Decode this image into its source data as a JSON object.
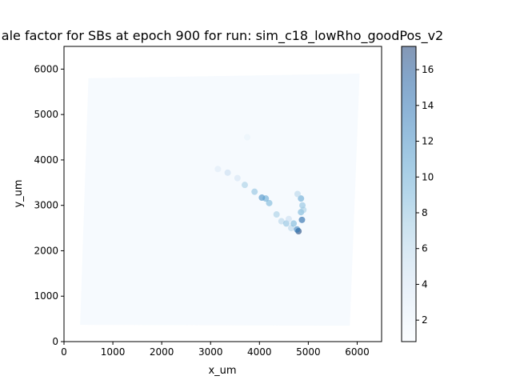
{
  "chart_data": {
    "type": "heatmap",
    "title": "ale factor for SBs at epoch 900 for run: sim_c18_lowRho_goodPos_v2",
    "xlabel": "x_um",
    "ylabel": "y_um",
    "xlim": [
      0,
      6500
    ],
    "ylim": [
      0,
      6500
    ],
    "x_ticks": [
      0,
      1000,
      2000,
      3000,
      4000,
      5000,
      6000
    ],
    "y_ticks": [
      0,
      1000,
      2000,
      3000,
      4000,
      5000,
      6000
    ],
    "grid": false,
    "colormap": "Blues",
    "colorbar": {
      "range": [
        0.8,
        17.3
      ],
      "ticks": [
        2,
        4,
        6,
        8,
        10,
        12,
        14,
        16
      ]
    },
    "background_region": {
      "value": 1,
      "corners": [
        [
          500,
          5800
        ],
        [
          6050,
          5900
        ],
        [
          5850,
          350
        ],
        [
          330,
          370
        ]
      ]
    },
    "points": [
      {
        "x": 3350,
        "y": 3720,
        "value": 5
      },
      {
        "x": 3550,
        "y": 3600,
        "value": 4
      },
      {
        "x": 3700,
        "y": 3450,
        "value": 7
      },
      {
        "x": 3900,
        "y": 3300,
        "value": 8
      },
      {
        "x": 4050,
        "y": 3170,
        "value": 12
      },
      {
        "x": 4130,
        "y": 3150,
        "value": 10
      },
      {
        "x": 4200,
        "y": 3050,
        "value": 9
      },
      {
        "x": 4350,
        "y": 2800,
        "value": 7
      },
      {
        "x": 4450,
        "y": 2650,
        "value": 6
      },
      {
        "x": 4550,
        "y": 2600,
        "value": 8
      },
      {
        "x": 4650,
        "y": 2500,
        "value": 6
      },
      {
        "x": 4700,
        "y": 2600,
        "value": 9
      },
      {
        "x": 4800,
        "y": 2430,
        "value": 17
      },
      {
        "x": 4770,
        "y": 2470,
        "value": 13
      },
      {
        "x": 4870,
        "y": 2680,
        "value": 15
      },
      {
        "x": 4850,
        "y": 2850,
        "value": 9
      },
      {
        "x": 4880,
        "y": 3000,
        "value": 8
      },
      {
        "x": 4850,
        "y": 3150,
        "value": 10
      },
      {
        "x": 4780,
        "y": 3250,
        "value": 6
      },
      {
        "x": 4900,
        "y": 2900,
        "value": 7
      },
      {
        "x": 3150,
        "y": 3800,
        "value": 3
      },
      {
        "x": 3750,
        "y": 4500,
        "value": 2
      },
      {
        "x": 4600,
        "y": 2700,
        "value": 5
      }
    ]
  }
}
